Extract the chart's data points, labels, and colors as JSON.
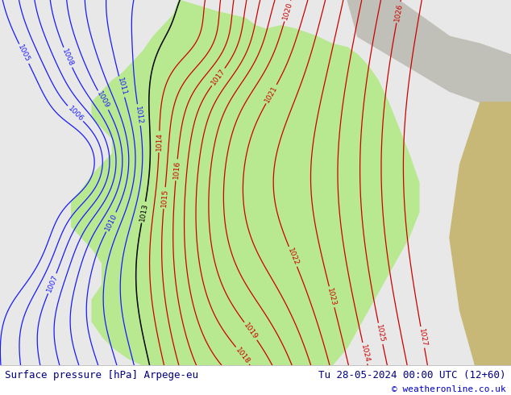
{
  "title_left": "Surface pressure [hPa] Arpege-eu",
  "title_right": "Tu 28-05-2024 00:00 UTC (12+60)",
  "copyright": "© weatheronline.co.uk",
  "sea_bg_color": "#e8e8e8",
  "land_green_color": "#b8e890",
  "gray_area_color": "#c0c0b8",
  "tan_area_color": "#c8b878",
  "bottom_bg_color": "#ffffff",
  "bottom_text_color": "#000080",
  "copyright_color": "#0000cc",
  "font_size_bottom": 9,
  "fig_width": 6.34,
  "fig_height": 4.9,
  "dpi": 100,
  "label_fontsize": 6.5
}
